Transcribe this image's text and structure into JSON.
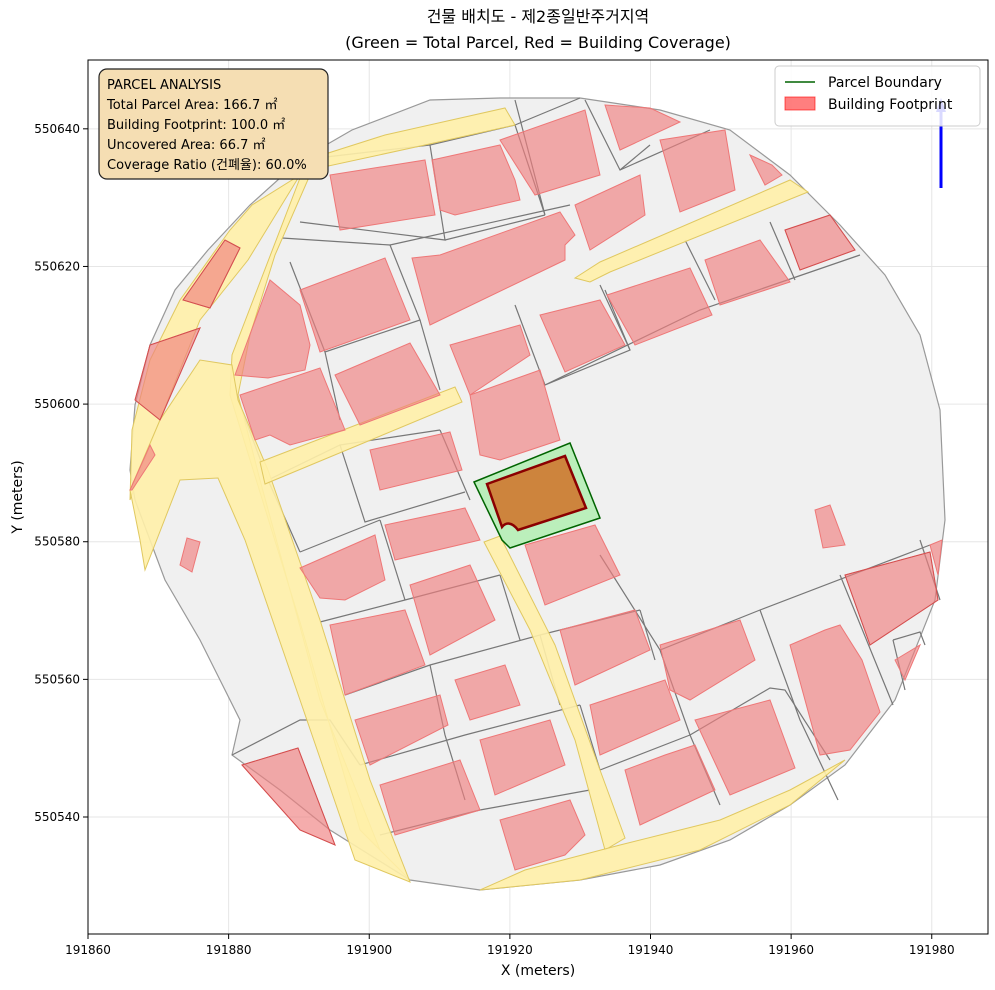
{
  "title_line1": "건물 배치도 - 제2종일반주거지역",
  "title_line2": "(Green = Total Parcel, Red = Building Coverage)",
  "xlabel": "X (meters)",
  "ylabel": "Y (meters)",
  "info_box": {
    "heading": "PARCEL ANALYSIS",
    "parcel_area": "Total Parcel Area: 166.7 ㎡",
    "footprint": "Building Footprint: 100.0 ㎡",
    "uncovered": "Uncovered Area: 66.7 ㎡",
    "coverage": "Coverage Ratio (건폐율): 60.0%"
  },
  "legend": {
    "parcel_label": "Parcel Boundary",
    "building_label": "Building Footprint",
    "parcel_color": "#006400",
    "building_color": "#ff0000"
  },
  "colors": {
    "road": "#fff0a8",
    "parcel_fill": "#f0f0f0",
    "building": "#f08080",
    "target_parcel": "#90ee90",
    "target_building": "#8b0000",
    "north_arrow": "#0000ff"
  },
  "chart_data": {
    "type": "map",
    "x_ticks": [
      "191860",
      "191880",
      "191900",
      "191920",
      "191940",
      "191960",
      "191980"
    ],
    "y_ticks": [
      "550540",
      "550560",
      "550580",
      "550600",
      "550620",
      "550640"
    ],
    "x_tick_values": [
      191860,
      191880,
      191900,
      191920,
      191940,
      191960,
      191980
    ],
    "y_tick_values": [
      550540,
      550560,
      550580,
      550600,
      550620,
      550640
    ],
    "xlim": [
      191860,
      191988
    ],
    "ylim": [
      550523,
      550650
    ],
    "grid": true,
    "legend_position": "top-right",
    "info_position": "top-left",
    "target_parcel": {
      "parcel_area_m2": 166.7,
      "building_footprint_m2": 100.0,
      "uncovered_area_m2": 66.7,
      "coverage_ratio_pct": 60.0
    }
  }
}
